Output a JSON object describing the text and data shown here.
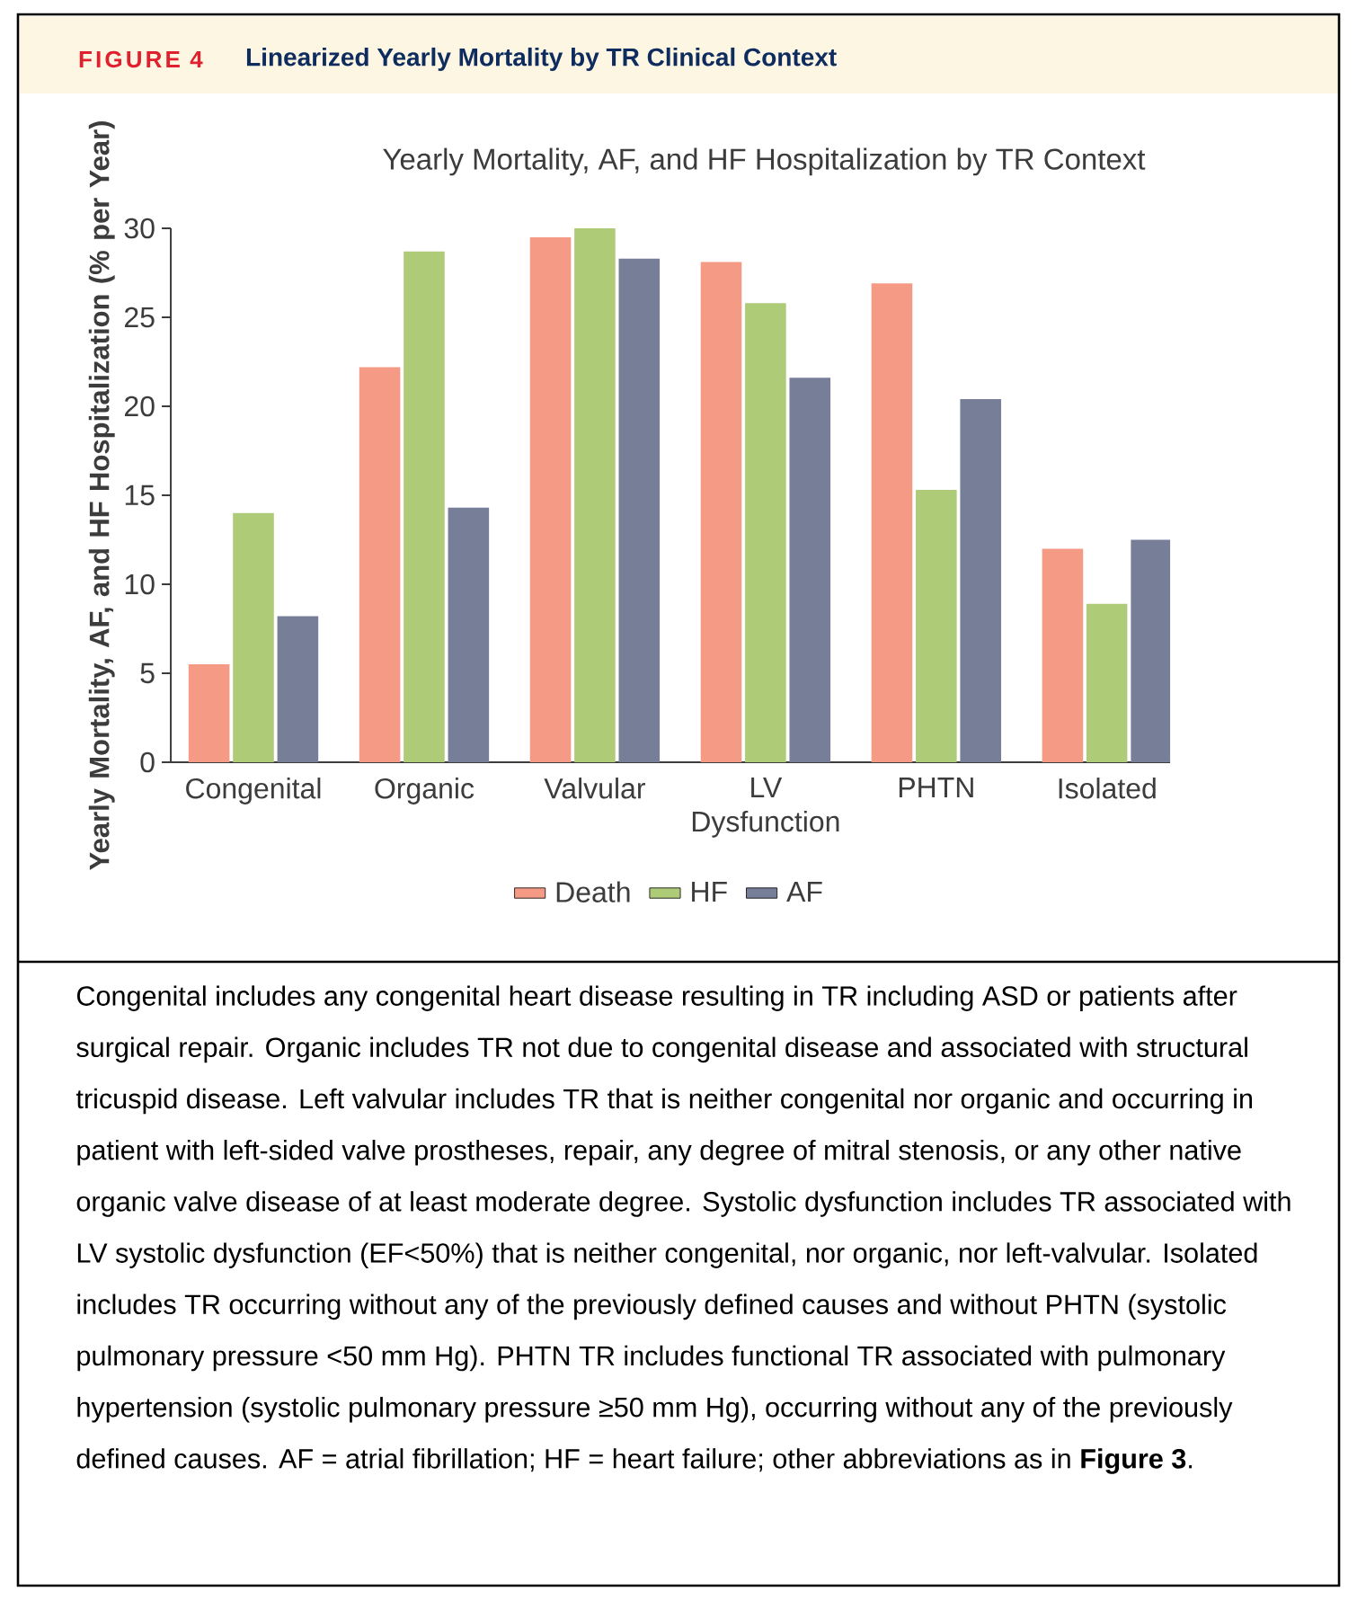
{
  "chart_data": {
    "type": "bar",
    "title": "Yearly Mortality, AF, and HF Hospitalization by TR Context",
    "ylabel": "Yearly Mortality, AF, and HF Hospitalization (% per Year)",
    "categories": [
      "Congenital",
      "Organic",
      "Valvular",
      "LV Dysfunction",
      "PHTN",
      "Isolated"
    ],
    "series": [
      {
        "name": "Death",
        "color": "#f59a84",
        "values": [
          5.5,
          22.2,
          29.5,
          28.1,
          26.9,
          12.0
        ]
      },
      {
        "name": "HF",
        "color": "#aecb78",
        "values": [
          14.0,
          28.7,
          30.0,
          25.8,
          15.3,
          8.9
        ]
      },
      {
        "name": "AF",
        "color": "#767e98",
        "values": [
          8.2,
          14.3,
          28.3,
          21.6,
          20.4,
          12.5
        ]
      }
    ],
    "ylim": [
      0,
      30
    ],
    "yticks": [
      0,
      5,
      10,
      15,
      20,
      25,
      30
    ],
    "legend": "bottom",
    "annotations": [
      "FIGURE 4",
      "Linearized Yearly Mortality by TR Clinical Context",
      "Congenital includes any congenital heart disease resulting in TR including ASD or patients after surgical repair. Organic includes TR not due to congenital disease and associated with structural tricuspid disease. Left valvular includes TR that is neither congenital nor organic and occurring in patient with left-sided valve prostheses, repair, any degree of mitral stenosis, or any other native organic valve disease of at least moderate degree. Systolic dysfunction includes TR associated with LV systolic dysfunction (EF<50%) that is neither congenital, nor organic, nor left-valvular. Isolated includes TR occurring without any of the previously defined causes and without PHTN (systolic pulmonary pressure <50 mm Hg). PHTN TR includes functional TR associated with pulmonary hypertension (systolic pulmonary pressure ≥50 mm Hg), occurring without any of the previously defined causes. AF = atrial fibrillation; HF = heart failure; other abbreviations as in **Figure 3**."
    ]
  }
}
